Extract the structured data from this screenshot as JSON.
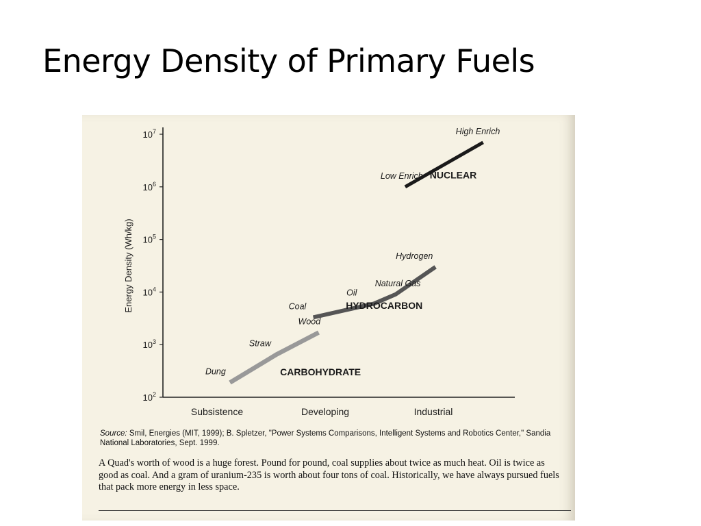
{
  "slide": {
    "title": "Energy Density of Primary Fuels"
  },
  "chart_data": {
    "type": "line",
    "ylabel": "Energy Density (Wh/kg)",
    "yscale": "log",
    "ylim": [
      100,
      10000000
    ],
    "yticks": [
      {
        "value": 100,
        "base": "10",
        "exp": "2"
      },
      {
        "value": 1000,
        "base": "10",
        "exp": "3"
      },
      {
        "value": 10000,
        "base": "10",
        "exp": "4"
      },
      {
        "value": 100000,
        "base": "10",
        "exp": "5"
      },
      {
        "value": 1000000,
        "base": "10",
        "exp": "6"
      },
      {
        "value": 10000000,
        "base": "10",
        "exp": "7"
      }
    ],
    "x_categories": [
      "Subsistence",
      "Developing",
      "Industrial"
    ],
    "xlim": [
      0,
      3
    ],
    "series": [
      {
        "name": "CARBOHYDRATE",
        "color": "#999999",
        "points": [
          {
            "x": 0.62,
            "y": 190,
            "label": "Dung"
          },
          {
            "x": 1.05,
            "y": 650,
            "label": "Straw"
          },
          {
            "x": 1.44,
            "y": 1700,
            "label": "Wood"
          }
        ]
      },
      {
        "name": "HYDROCARBON",
        "color": "#555555",
        "points": [
          {
            "x": 1.39,
            "y": 3300,
            "label": "Coal"
          },
          {
            "x": 1.95,
            "y": 6000,
            "label": "Oil"
          },
          {
            "x": 2.15,
            "y": 9000,
            "label": "Natural Gas"
          },
          {
            "x": 2.52,
            "y": 30000,
            "label": "Hydrogen"
          }
        ]
      },
      {
        "name": "NUCLEAR",
        "color": "#1a1a1a",
        "points": [
          {
            "x": 2.24,
            "y": 1000000,
            "label": "Low Enrich"
          },
          {
            "x": 2.96,
            "y": 7000000,
            "label": "High Enrich"
          }
        ]
      }
    ]
  },
  "source": {
    "label": "Source:",
    "text": "Smil, Energies (MIT, 1999);  B. Spletzer, \"Power Systems Comparisons, Intelligent Systems and Robotics Center,\" Sandia National Laboratories, Sept. 1999."
  },
  "body": {
    "text": "A Quad's worth of wood is a huge forest.  Pound for pound, coal supplies about twice as much heat. Oil is twice as good as coal.  And a gram of uranium-235 is worth about four tons of coal. Historically, we have always pursued fuels that pack more energy in less space."
  }
}
